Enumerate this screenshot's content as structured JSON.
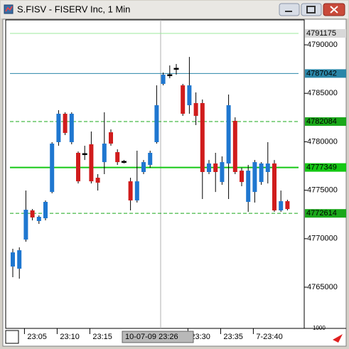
{
  "window_title": "S.FISV - FISERV Inc, 1 Min",
  "chart_data": {
    "type": "candlestick",
    "categories": [
      null,
      null,
      "23:05",
      null,
      null,
      null,
      null,
      "23:10",
      null,
      null,
      null,
      null,
      "23:15",
      null,
      null,
      null,
      null,
      null,
      null,
      null,
      null,
      null,
      null,
      null,
      null,
      null,
      null,
      "23:30",
      null,
      null,
      null,
      null,
      "23:35",
      null,
      null,
      null,
      null,
      "7-23:40",
      null,
      null,
      null,
      null,
      null
    ],
    "open": [
      4767130,
      4766910,
      4769910,
      4772920,
      4771820,
      4772110,
      4774820,
      4779960,
      4782890,
      4779960,
      4778860,
      4778780,
      4779740,
      4776290,
      4777900,
      4780980,
      4778930,
      4777980,
      4775920,
      4773950,
      4776880,
      4777610,
      4779960,
      4785970,
      4786920,
      4787580,
      4785820,
      4783770,
      4783990,
      4783990,
      4776880,
      4777760,
      4775850,
      4777760,
      4782160,
      4777020,
      4773800,
      4774820,
      4775850,
      4776880,
      4777760,
      4772920,
      4773870
    ],
    "high": [
      4768960,
      4769110,
      4774970,
      4773060,
      4772410,
      4773950,
      4779960,
      4783260,
      4783040,
      4783040,
      4779000,
      4779590,
      4781060,
      4776660,
      4783040,
      4781280,
      4779220,
      4778120,
      4776290,
      4779080,
      4778120,
      4779080,
      4785820,
      4787140,
      4787870,
      4788020,
      4785970,
      4788750,
      4785090,
      4784360,
      4778120,
      4778860,
      4778490,
      4784870,
      4782520,
      4777320,
      4777610,
      4778120,
      4777900,
      4779960,
      4778120,
      4774970,
      4774020
    ],
    "low": [
      4766030,
      4765880,
      4769690,
      4771890,
      4771530,
      4771890,
      4774680,
      4779590,
      4780690,
      4779740,
      4775700,
      4778120,
      4775700,
      4774970,
      4776660,
      4779590,
      4777610,
      4777760,
      4772920,
      4773730,
      4776660,
      4777320,
      4779810,
      4785820,
      4786550,
      4786920,
      4782670,
      4782890,
      4781720,
      4774090,
      4776660,
      4774820,
      4775560,
      4774090,
      4776660,
      4775410,
      4772770,
      4773730,
      4775560,
      4775700,
      4772770,
      4772770,
      4772920
    ],
    "close": [
      4768590,
      4768810,
      4772990,
      4772190,
      4772260,
      4773800,
      4779810,
      4782890,
      4780910,
      4782890,
      4775920,
      4778780,
      4775920,
      4775780,
      4779810,
      4779810,
      4777900,
      4777980,
      4773950,
      4775920,
      4777900,
      4778860,
      4783770,
      4786920,
      4786920,
      4787580,
      4782890,
      4785820,
      4782670,
      4776880,
      4777760,
      4776880,
      4777900,
      4783770,
      4776880,
      4775850,
      4777020,
      4777900,
      4777760,
      4777760,
      4772920,
      4773870,
      4773060
    ],
    "up_color": "#1f77d0",
    "down_color": "#d01c1c",
    "ylim": [
      4760750,
      4792570
    ],
    "yticks": [
      4765000,
      4770000,
      4775000,
      4780000,
      4785000,
      4790000
    ],
    "levels": [
      {
        "value": 4791175,
        "color": "#9be89b",
        "style": "solid"
      },
      {
        "value": 4787042,
        "color": "#2a86a8",
        "style": "solid"
      },
      {
        "value": 4782084,
        "color": "#1aa81a",
        "style": "dashed"
      },
      {
        "value": 4777349,
        "color": "#14c814",
        "style": "thick"
      },
      {
        "value": 4772614,
        "color": "#1aa81a",
        "style": "dashed"
      }
    ],
    "crosshair_label": "10-07-09 23:26",
    "corner_label": "1000"
  }
}
